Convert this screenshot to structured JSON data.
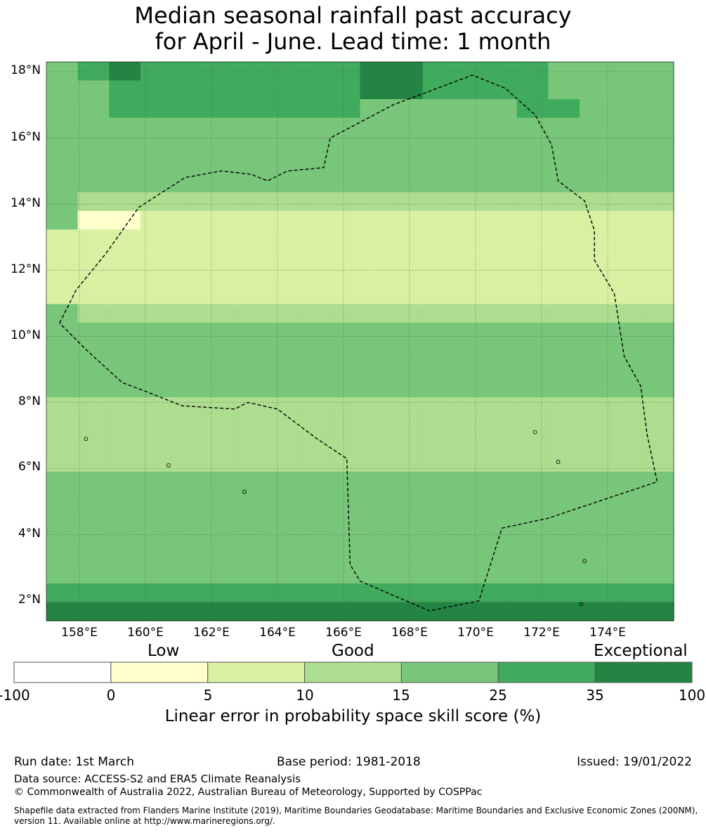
{
  "title_line1": "Median seasonal rainfall past accuracy",
  "title_line2": "for April - June. Lead time: 1 month",
  "lat_labels": [
    "18°N",
    "16°N",
    "14°N",
    "12°N",
    "10°N",
    "8°N",
    "6°N",
    "4°N",
    "2°N"
  ],
  "lon_labels": [
    "158°E",
    "160°E",
    "162°E",
    "164°E",
    "166°E",
    "168°E",
    "170°E",
    "172°E",
    "174°E"
  ],
  "legend": {
    "categories": [
      "Low",
      "Good",
      "Exceptional"
    ],
    "ticks": [
      "-100",
      "0",
      "5",
      "10",
      "15",
      "25",
      "35",
      "100"
    ],
    "colors": [
      "#ffffff",
      "#ffffcc",
      "#d9f0a3",
      "#addd8e",
      "#78c679",
      "#41ab5d",
      "#238443"
    ],
    "title": "Linear error in probability space skill score (%)"
  },
  "footer": {
    "run_date": "Run date: 1st March",
    "base_period": "Base period: 1981-2018",
    "issued": "Issued: 19/01/2022",
    "data_source": "Data source: ACCESS-S2 and ERA5 Climate Reanalysis",
    "copyright": "© Commonwealth of Australia 2022, Australian Bureau of Meteorology, Supported by COSPPac",
    "shapefile": "Shapefile data extracted from Flanders Marine Institute (2019), Maritime Boundaries Geodatabase: Maritime Boundaries and Exclusive Economic Zones (200NM), version 11. Available online at http://www.marineregions.org/."
  },
  "chart_data": {
    "type": "heatmap",
    "x_range": [
      157,
      176
    ],
    "y_range": [
      1.4,
      18.3
    ],
    "grid": "on",
    "category_scale": [
      "-100 to 0",
      "0 to 5",
      "5 to 10",
      "10 to 15",
      "15 to 25",
      "25 to 35",
      "35 to 100"
    ],
    "rows_north_to_south": [
      "45655555556655554444",
      "44555555556655554444",
      "44555555554444455444",
      "44444444444444444444",
      "44444444444444444444",
      "44444444444444444444",
      "44444444444444444444",
      "43333333333333333333",
      "41122222222222222222",
      "22222222222222222222",
      "22222222222222222222",
      "22222222222222222222",
      "22222222222222222222",
      "43333333333333333333",
      "44444444444444444444",
      "44444444444444444444",
      "44444444444444444444",
      "44444444444444444444",
      "33333333333333333333",
      "33333333333333333333",
      "33333333333333333333",
      "33333333333333333333",
      "44444444444444444444",
      "44444444444444444444",
      "44444444444444444444",
      "44444444444444444444",
      "44444444444444444444",
      "44444444444444444444",
      "55555555555555555555",
      "66666666666666666666"
    ]
  }
}
